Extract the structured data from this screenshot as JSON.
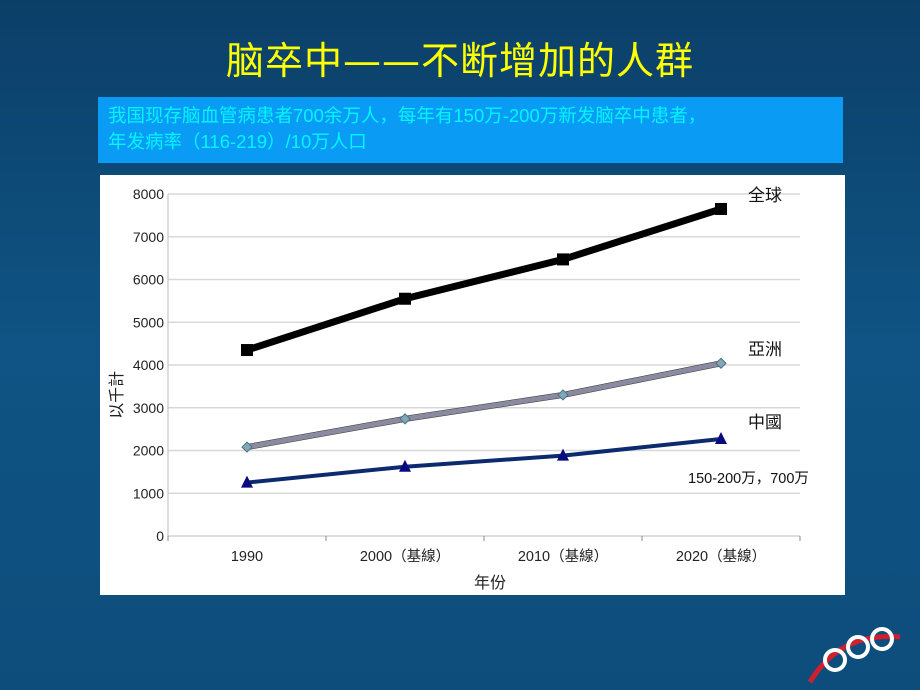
{
  "title": "脑卒中——不断增加的人群",
  "info_lines": [
    "我国现存脑血管病患者700余万人，每年有150万-200万新发脑卒中患者，",
    "年发病率（116-219）/10万人口"
  ],
  "chart_data": {
    "type": "line",
    "categories": [
      "1990",
      "2000（基線）",
      "2010（基線）",
      "2020（基線）"
    ],
    "xlabel": "年份",
    "ylabel": "以千計",
    "ylim": [
      0,
      8000
    ],
    "yticks": [
      0,
      1000,
      2000,
      3000,
      4000,
      5000,
      6000,
      7000,
      8000
    ],
    "grid": true,
    "series": [
      {
        "name": "全球",
        "values": [
          4350,
          5550,
          6470,
          7650
        ],
        "color": "#000000",
        "marker": "square"
      },
      {
        "name": "亞洲",
        "values": [
          2080,
          2740,
          3300,
          4040
        ],
        "color": "#8a8aa0",
        "marker": "diamond"
      },
      {
        "name": "中國",
        "values": [
          1250,
          1620,
          1880,
          2270
        ],
        "color": "#0c2a6e",
        "marker": "triangle"
      }
    ],
    "annotation": "150-200万，700万"
  }
}
